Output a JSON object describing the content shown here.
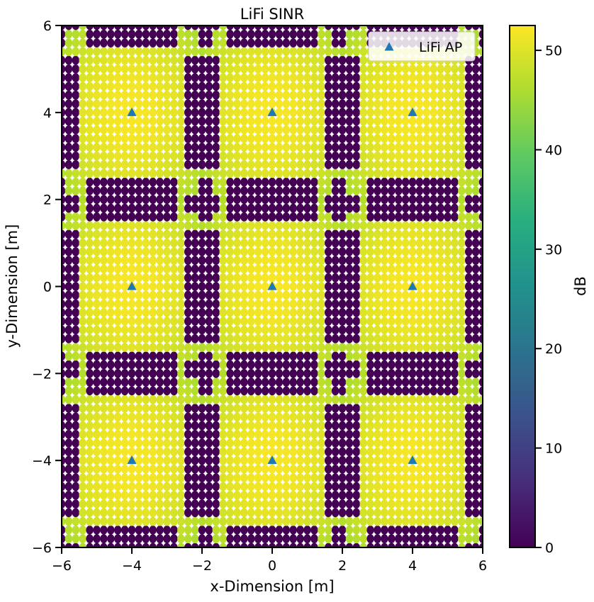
{
  "chart_data": {
    "type": "heatmap",
    "title": "LiFi SINR",
    "xlabel": "x-Dimension [m]",
    "ylabel": "y-Dimension [m]",
    "xlim": [
      -6,
      6
    ],
    "ylim": [
      -6,
      6
    ],
    "xticks": [
      "−6",
      "−4",
      "−2",
      "0",
      "2",
      "4",
      "6"
    ],
    "xtick_values": [
      -6,
      -4,
      -2,
      0,
      2,
      4,
      6
    ],
    "yticks": [
      "−6",
      "−4",
      "−2",
      "0",
      "2",
      "4",
      "6"
    ],
    "ytick_values": [
      -6,
      -4,
      -2,
      0,
      2,
      4,
      6
    ],
    "grid": false,
    "colormap": "viridis",
    "colorbar": {
      "label": "dB",
      "range": [
        0,
        52.5
      ],
      "ticks": [
        "0",
        "10",
        "20",
        "30",
        "40",
        "50"
      ],
      "tick_values": [
        0,
        10,
        20,
        30,
        40,
        50
      ]
    },
    "peak_sinr_db": 52,
    "cell_edge_sinr_db": 0,
    "legend": {
      "position": "top-right",
      "entries": [
        {
          "label": "LiFi AP",
          "marker": "triangle",
          "color": "#1f77b4"
        }
      ]
    },
    "series": [
      {
        "name": "LiFi AP",
        "marker": "triangle",
        "color": "#1f77b4",
        "points": [
          [
            -4,
            4
          ],
          [
            0,
            4
          ],
          [
            4,
            4
          ],
          [
            -4,
            0
          ],
          [
            0,
            0
          ],
          [
            4,
            0
          ],
          [
            -4,
            -4
          ],
          [
            0,
            -4
          ],
          [
            4,
            -4
          ]
        ]
      }
    ]
  }
}
